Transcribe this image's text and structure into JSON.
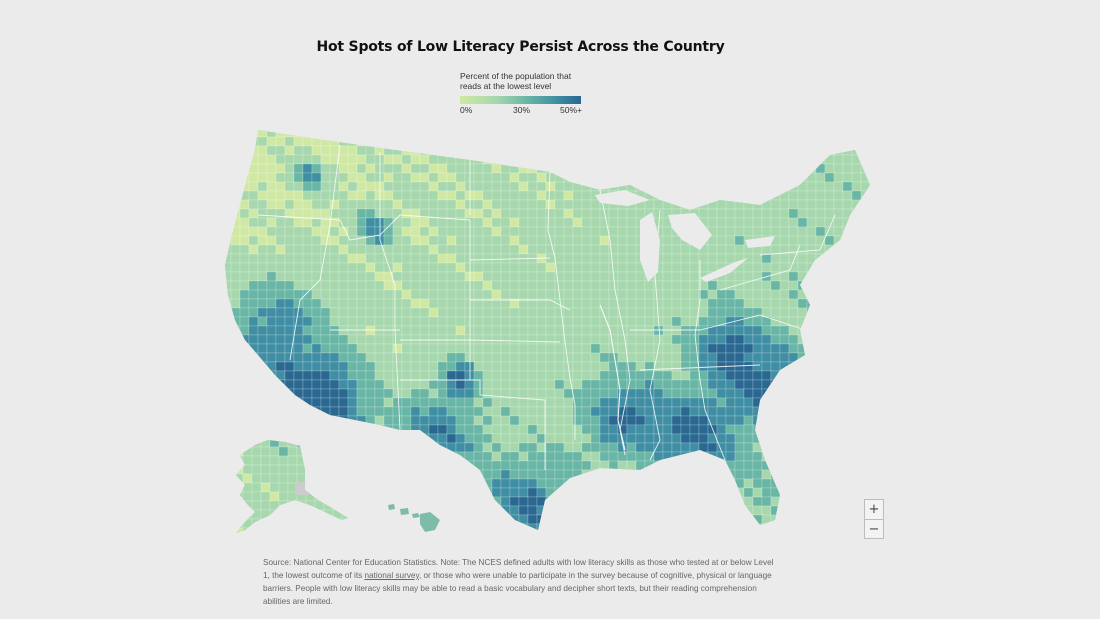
{
  "title": "Hot Spots of Low Literacy Persist Across the Country",
  "legend": {
    "label": "Percent of the population that reads at the lowest level",
    "ticks": [
      "0%",
      "30%",
      "50%+"
    ],
    "colors": [
      "#cfe9a4",
      "#a6d7ad",
      "#69b6a6",
      "#3f8ea3",
      "#2a6892"
    ]
  },
  "map": {
    "type": "choropleth",
    "geography": "US counties",
    "measure": "Percent of the population that reads at the lowest level",
    "no_data_color": "#cccccc"
  },
  "zoom": {
    "in_label": "+",
    "out_label": "−"
  },
  "source": {
    "part1": "Source: National Center for Education Statistics. Note: The NCES defined adults with low literacy skills as those who tested at or below Level 1, the lowest outcome of its ",
    "link_text": "national survey",
    "part2": ", or those who were unable to participate in the survey because of cognitive, physical or language barriers. People with low literacy skills may be able to read a basic vocabulary and decipher short texts, but their reading comprehension abilities are limited."
  }
}
